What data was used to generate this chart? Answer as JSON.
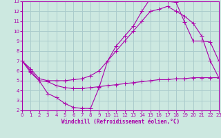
{
  "background_color": "#cce8e0",
  "grid_color": "#aacccc",
  "line_color": "#aa00aa",
  "spine_color": "#aa00aa",
  "xlabel": "Windchill (Refroidissement éolien,°C)",
  "xlim": [
    0,
    23
  ],
  "ylim": [
    2,
    13
  ],
  "xticks": [
    0,
    1,
    2,
    3,
    4,
    5,
    6,
    7,
    8,
    9,
    10,
    11,
    12,
    13,
    14,
    15,
    16,
    17,
    18,
    19,
    20,
    21,
    22,
    23
  ],
  "yticks": [
    2,
    3,
    4,
    5,
    6,
    7,
    8,
    9,
    10,
    11,
    12,
    13
  ],
  "curve1_x": [
    0,
    1,
    2,
    3,
    4,
    5,
    6,
    7,
    8,
    9,
    10,
    11,
    12,
    13,
    14,
    15,
    16,
    17,
    18,
    19,
    20,
    21,
    22,
    23
  ],
  "curve1_y": [
    7.0,
    6.0,
    5.0,
    3.7,
    3.3,
    2.7,
    2.3,
    2.2,
    2.2,
    4.3,
    7.0,
    8.5,
    9.5,
    10.5,
    12.0,
    13.3,
    13.3,
    13.0,
    12.9,
    10.9,
    9.0,
    9.0,
    8.9,
    7.0
  ],
  "curve2_x": [
    0,
    1,
    2,
    3,
    4,
    5,
    6,
    7,
    8,
    9,
    10,
    11,
    12,
    13,
    14,
    15,
    16,
    17,
    18,
    19,
    20,
    21,
    22,
    23
  ],
  "curve2_y": [
    7.0,
    6.2,
    5.2,
    5.0,
    5.0,
    5.0,
    5.1,
    5.2,
    5.5,
    6.0,
    7.0,
    8.0,
    9.0,
    10.0,
    11.0,
    12.0,
    12.2,
    12.5,
    12.0,
    11.5,
    10.8,
    9.5,
    7.0,
    5.3
  ],
  "curve3_x": [
    0,
    1,
    2,
    3,
    4,
    5,
    6,
    7,
    8,
    9,
    10,
    11,
    12,
    13,
    14,
    15,
    16,
    17,
    18,
    19,
    20,
    21,
    22,
    23
  ],
  "curve3_y": [
    7.0,
    5.8,
    5.0,
    4.9,
    4.5,
    4.3,
    4.2,
    4.2,
    4.3,
    4.4,
    4.5,
    4.6,
    4.7,
    4.8,
    4.9,
    5.0,
    5.1,
    5.1,
    5.2,
    5.2,
    5.3,
    5.3,
    5.3,
    5.3
  ]
}
